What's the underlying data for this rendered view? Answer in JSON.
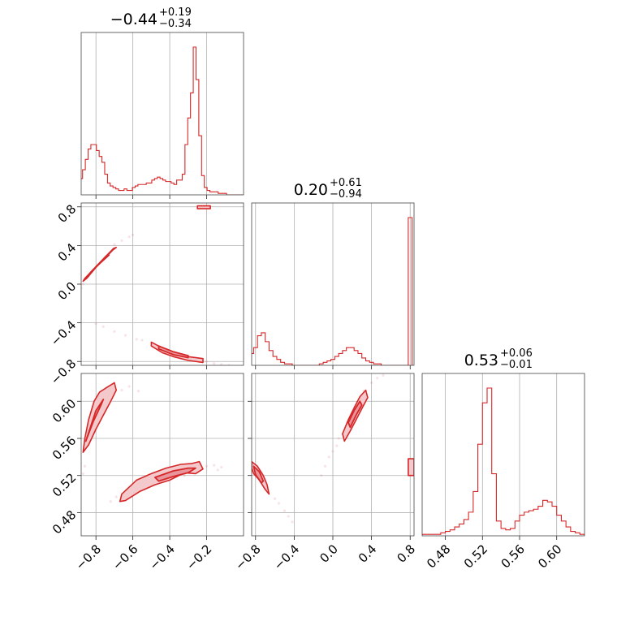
{
  "colors": {
    "series": "#d62728",
    "fill_light": "#f3c9cc",
    "fill_dark": "#e8959b",
    "grid": "#b0b0b0"
  },
  "chart_data": {
    "type": "corner",
    "parameters": [
      {
        "index": 0,
        "range": [
          -0.88,
          0.0
        ],
        "ticks": [
          -0.8,
          -0.6,
          -0.4,
          -0.2
        ],
        "tick_labels": [
          "−0.8",
          "−0.6",
          "−0.4",
          "−0.2"
        ],
        "title": {
          "value": "−0.44",
          "plus": "+0.19",
          "minus": "−0.34"
        },
        "hist": {
          "type": "step",
          "x": [
            -0.88,
            -0.865,
            -0.85,
            -0.835,
            -0.82,
            -0.805,
            -0.79,
            -0.775,
            -0.76,
            -0.745,
            -0.73,
            -0.715,
            -0.7,
            -0.685,
            -0.67,
            -0.655,
            -0.64,
            -0.625,
            -0.61,
            -0.595,
            -0.58,
            -0.565,
            -0.55,
            -0.535,
            -0.52,
            -0.505,
            -0.49,
            -0.475,
            -0.46,
            -0.445,
            -0.43,
            -0.415,
            -0.4,
            -0.385,
            -0.37,
            -0.355,
            -0.34,
            -0.325,
            -0.31,
            -0.295,
            -0.28,
            -0.265,
            -0.25,
            -0.235,
            -0.22,
            -0.205,
            -0.19,
            -0.175,
            -0.16,
            -0.145,
            -0.13,
            -0.115,
            -0.1,
            -0.085,
            -0.07,
            -0.055,
            -0.04,
            -0.025,
            -0.01
          ],
          "values": [
            0.11,
            0.17,
            0.24,
            0.31,
            0.34,
            0.34,
            0.3,
            0.26,
            0.22,
            0.14,
            0.08,
            0.06,
            0.05,
            0.04,
            0.03,
            0.03,
            0.04,
            0.03,
            0.03,
            0.05,
            0.06,
            0.07,
            0.07,
            0.07,
            0.08,
            0.08,
            0.1,
            0.11,
            0.12,
            0.11,
            0.1,
            0.09,
            0.09,
            0.08,
            0.07,
            0.1,
            0.1,
            0.14,
            0.34,
            0.52,
            0.69,
            1.0,
            0.78,
            0.4,
            0.13,
            0.05,
            0.03,
            0.02,
            0.02,
            0.02,
            0.01,
            0.01,
            0.01,
            0.0,
            0.0,
            0.0,
            0.0,
            0.0,
            0.0
          ]
        }
      },
      {
        "index": 1,
        "range": [
          -0.84,
          0.84
        ],
        "ticks": [
          -0.8,
          -0.4,
          0.0,
          0.4,
          0.8
        ],
        "tick_labels": [
          "−0.8",
          "−0.4",
          "0.0",
          "0.4",
          "0.8"
        ],
        "title": {
          "value": "0.20",
          "plus": "+0.61",
          "minus": "−0.94"
        },
        "hist": {
          "type": "step",
          "x": [
            -0.84,
            -0.8,
            -0.76,
            -0.72,
            -0.68,
            -0.64,
            -0.6,
            -0.56,
            -0.52,
            -0.48,
            -0.44,
            -0.4,
            -0.36,
            -0.32,
            -0.28,
            -0.24,
            -0.2,
            -0.16,
            -0.12,
            -0.08,
            -0.04,
            0.0,
            0.04,
            0.08,
            0.12,
            0.16,
            0.2,
            0.24,
            0.28,
            0.32,
            0.36,
            0.4,
            0.44,
            0.48,
            0.52,
            0.56,
            0.6,
            0.64,
            0.68,
            0.72,
            0.76,
            0.8
          ],
          "values": [
            0.08,
            0.12,
            0.2,
            0.22,
            0.16,
            0.1,
            0.06,
            0.04,
            0.02,
            0.01,
            0.01,
            0.0,
            0.0,
            0.0,
            0.0,
            0.0,
            0.0,
            0.0,
            0.01,
            0.02,
            0.03,
            0.04,
            0.06,
            0.08,
            0.1,
            0.12,
            0.12,
            0.1,
            0.08,
            0.05,
            0.03,
            0.02,
            0.01,
            0.01,
            0.0,
            0.0,
            0.0,
            0.0,
            0.0,
            0.0,
            0.0,
            1.0
          ]
        }
      },
      {
        "index": 2,
        "range": [
          0.455,
          0.63
        ],
        "ticks": [
          0.48,
          0.52,
          0.56,
          0.6
        ],
        "tick_labels": [
          "0.48",
          "0.52",
          "0.56",
          "0.60"
        ],
        "title": {
          "value": "0.53",
          "plus": "+0.06",
          "minus": "−0.01"
        },
        "hist": {
          "type": "step",
          "x": [
            0.4575,
            0.4625,
            0.4675,
            0.4725,
            0.4775,
            0.4825,
            0.4875,
            0.4925,
            0.4975,
            0.5025,
            0.5075,
            0.5125,
            0.5175,
            0.5225,
            0.5275,
            0.5325,
            0.5375,
            0.5425,
            0.5475,
            0.5525,
            0.5575,
            0.5625,
            0.5675,
            0.5725,
            0.5775,
            0.5825,
            0.5875,
            0.5925,
            0.5975,
            0.6025,
            0.6075,
            0.6125,
            0.6175,
            0.6225,
            0.6275
          ],
          "values": [
            0.01,
            0.01,
            0.01,
            0.01,
            0.02,
            0.03,
            0.04,
            0.06,
            0.08,
            0.11,
            0.16,
            0.3,
            0.62,
            0.9,
            1.0,
            0.42,
            0.1,
            0.05,
            0.04,
            0.05,
            0.1,
            0.14,
            0.16,
            0.17,
            0.18,
            0.2,
            0.24,
            0.23,
            0.2,
            0.14,
            0.1,
            0.06,
            0.03,
            0.02,
            0.01
          ]
        }
      }
    ],
    "contours": [
      {
        "row": 1,
        "col": 0,
        "outer": [
          [
            [
              -0.86,
              0.06
            ],
            [
              -0.82,
              0.14
            ],
            [
              -0.78,
              0.22
            ],
            [
              -0.74,
              0.29
            ],
            [
              -0.71,
              0.35
            ],
            [
              -0.69,
              0.38
            ],
            [
              -0.705,
              0.37
            ],
            [
              -0.735,
              0.31
            ],
            [
              -0.77,
              0.24
            ],
            [
              -0.81,
              0.15
            ],
            [
              -0.85,
              0.06
            ],
            [
              -0.87,
              0.03
            ]
          ],
          [
            [
              -0.5,
              -0.6
            ],
            [
              -0.44,
              -0.66
            ],
            [
              -0.38,
              -0.71
            ],
            [
              -0.3,
              -0.75
            ],
            [
              -0.22,
              -0.77
            ],
            [
              -0.22,
              -0.81
            ],
            [
              -0.3,
              -0.79
            ],
            [
              -0.38,
              -0.75
            ],
            [
              -0.44,
              -0.71
            ],
            [
              -0.5,
              -0.64
            ]
          ],
          [
            [
              -0.25,
              0.81
            ],
            [
              -0.18,
              0.81
            ],
            [
              -0.18,
              0.78
            ],
            [
              -0.25,
              0.78
            ]
          ]
        ],
        "inner": [
          [
            [
              -0.82,
              0.14
            ],
            [
              -0.77,
              0.23
            ],
            [
              -0.73,
              0.3
            ],
            [
              -0.745,
              0.29
            ],
            [
              -0.785,
              0.21
            ],
            [
              -0.83,
              0.12
            ]
          ],
          [
            [
              -0.46,
              -0.64
            ],
            [
              -0.38,
              -0.7
            ],
            [
              -0.3,
              -0.74
            ],
            [
              -0.3,
              -0.76
            ],
            [
              -0.38,
              -0.73
            ],
            [
              -0.46,
              -0.67
            ]
          ]
        ],
        "scatter": [
          [
            -0.7,
            0.41
          ],
          [
            -0.66,
            0.45
          ],
          [
            -0.62,
            0.49
          ],
          [
            -0.6,
            0.51
          ],
          [
            -0.87,
            0.0
          ],
          [
            -0.88,
            -0.04
          ],
          [
            -0.84,
            0.08
          ],
          [
            -0.76,
            -0.44
          ],
          [
            -0.7,
            -0.49
          ],
          [
            -0.64,
            -0.53
          ],
          [
            -0.58,
            -0.57
          ],
          [
            -0.16,
            -0.82
          ],
          [
            -0.12,
            -0.83
          ],
          [
            -0.08,
            -0.84
          ],
          [
            -0.8,
            -0.41
          ],
          [
            -0.55,
            -0.58
          ],
          [
            -0.2,
            -0.8
          ]
        ]
      },
      {
        "row": 2,
        "col": 0,
        "outer": [
          [
            [
              -0.86,
              0.56
            ],
            [
              -0.84,
              0.58
            ],
            [
              -0.81,
              0.6
            ],
            [
              -0.78,
              0.61
            ],
            [
              -0.74,
              0.615
            ],
            [
              -0.7,
              0.62
            ],
            [
              -0.69,
              0.612
            ],
            [
              -0.72,
              0.6
            ],
            [
              -0.76,
              0.585
            ],
            [
              -0.8,
              0.57
            ],
            [
              -0.84,
              0.553
            ],
            [
              -0.87,
              0.545
            ]
          ],
          [
            [
              -0.66,
              0.5
            ],
            [
              -0.58,
              0.515
            ],
            [
              -0.5,
              0.522
            ],
            [
              -0.42,
              0.528
            ],
            [
              -0.34,
              0.532
            ],
            [
              -0.28,
              0.533
            ],
            [
              -0.24,
              0.535
            ],
            [
              -0.22,
              0.527
            ],
            [
              -0.26,
              0.522
            ],
            [
              -0.32,
              0.523
            ],
            [
              -0.4,
              0.515
            ],
            [
              -0.48,
              0.51
            ],
            [
              -0.56,
              0.503
            ],
            [
              -0.64,
              0.493
            ],
            [
              -0.67,
              0.492
            ]
          ]
        ],
        "inner": [
          [
            [
              -0.84,
              0.566
            ],
            [
              -0.8,
              0.59
            ],
            [
              -0.76,
              0.602
            ],
            [
              -0.775,
              0.595
            ],
            [
              -0.815,
              0.578
            ],
            [
              -0.855,
              0.557
            ]
          ],
          [
            [
              -0.48,
              0.518
            ],
            [
              -0.38,
              0.525
            ],
            [
              -0.3,
              0.528
            ],
            [
              -0.26,
              0.528
            ],
            [
              -0.3,
              0.523
            ],
            [
              -0.38,
              0.519
            ],
            [
              -0.46,
              0.514
            ]
          ]
        ],
        "scatter": [
          [
            -0.66,
            0.612
          ],
          [
            -0.62,
            0.616
          ],
          [
            -0.57,
            0.611
          ],
          [
            -0.86,
            0.53
          ],
          [
            -0.87,
            0.522
          ],
          [
            -0.72,
            0.492
          ],
          [
            -0.69,
            0.497
          ],
          [
            -0.2,
            0.53
          ],
          [
            -0.16,
            0.531
          ],
          [
            -0.12,
            0.529
          ],
          [
            -0.14,
            0.526
          ],
          [
            -0.32,
            0.52
          ],
          [
            -0.53,
            0.506
          ]
        ]
      },
      {
        "row": 2,
        "col": 1,
        "outer": [
          [
            [
              -0.84,
              0.535
            ],
            [
              -0.78,
              0.53
            ],
            [
              -0.72,
              0.52
            ],
            [
              -0.68,
              0.51
            ],
            [
              -0.66,
              0.5
            ],
            [
              -0.7,
              0.505
            ],
            [
              -0.76,
              0.515
            ],
            [
              -0.82,
              0.522
            ],
            [
              -0.84,
              0.528
            ]
          ],
          [
            [
              0.1,
              0.565
            ],
            [
              0.16,
              0.58
            ],
            [
              0.22,
              0.593
            ],
            [
              0.28,
              0.605
            ],
            [
              0.34,
              0.612
            ],
            [
              0.36,
              0.604
            ],
            [
              0.3,
              0.592
            ],
            [
              0.24,
              0.58
            ],
            [
              0.18,
              0.568
            ],
            [
              0.12,
              0.557
            ]
          ],
          [
            [
              0.78,
              0.538
            ],
            [
              0.84,
              0.538
            ],
            [
              0.84,
              0.52
            ],
            [
              0.78,
              0.52
            ]
          ]
        ],
        "inner": [
          [
            [
              -0.82,
              0.53
            ],
            [
              -0.76,
              0.524
            ],
            [
              -0.72,
              0.514
            ],
            [
              -0.74,
              0.512
            ],
            [
              -0.8,
              0.521
            ]
          ],
          [
            [
              0.16,
              0.577
            ],
            [
              0.22,
              0.59
            ],
            [
              0.28,
              0.6
            ],
            [
              0.3,
              0.596
            ],
            [
              0.24,
              0.585
            ],
            [
              0.18,
              0.572
            ]
          ]
        ],
        "scatter": [
          [
            -0.6,
            0.495
          ],
          [
            -0.56,
            0.49
          ],
          [
            -0.5,
            0.482
          ],
          [
            -0.46,
            0.476
          ],
          [
            -0.42,
            0.47
          ],
          [
            0.04,
            0.552
          ],
          [
            0.0,
            0.546
          ],
          [
            -0.04,
            0.54
          ],
          [
            0.4,
            0.62
          ],
          [
            0.46,
            0.625
          ],
          [
            0.52,
            0.628
          ],
          [
            0.06,
            0.56
          ],
          [
            0.32,
            0.611
          ],
          [
            -0.12,
            0.52
          ],
          [
            -0.08,
            0.53
          ]
        ]
      }
    ]
  }
}
